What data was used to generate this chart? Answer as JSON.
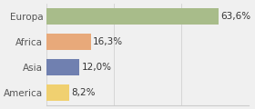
{
  "categories": [
    "Europa",
    "Africa",
    "Asia",
    "America"
  ],
  "values": [
    63.6,
    16.3,
    12.0,
    8.2
  ],
  "labels": [
    "63,6%",
    "16,3%",
    "12,0%",
    "8,2%"
  ],
  "bar_colors": [
    "#a8bc8a",
    "#e8a97a",
    "#7080b0",
    "#f0d070"
  ],
  "background_color": "#f0f0f0",
  "xlim": [
    0,
    75
  ],
  "label_fontsize": 7.5,
  "tick_fontsize": 7.5
}
